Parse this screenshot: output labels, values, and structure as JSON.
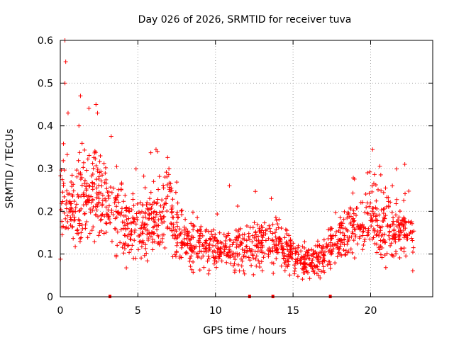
{
  "chart_data": {
    "type": "scatter",
    "title": "Day 026 of 2026, SRMTID for receiver tuva",
    "xlabel": "GPS time / hours",
    "ylabel": "SRMTID / TECUs",
    "xlim": [
      0,
      24
    ],
    "ylim": [
      0,
      0.6
    ],
    "xticks": [
      0,
      5,
      10,
      15,
      20
    ],
    "xtick_labels": [
      "0",
      "5",
      "10",
      "15",
      "20"
    ],
    "yticks": [
      0,
      0.1,
      0.2,
      0.3,
      0.4,
      0.5,
      0.6
    ],
    "ytick_labels": [
      "0",
      "0.1",
      "0.2",
      "0.3",
      "0.4",
      "0.5",
      "0.6"
    ],
    "grid": true,
    "marker": "plus",
    "series_color": "#ff0000",
    "series": [
      {
        "name": "SRMTID",
        "profile_time_hours": [
          0.0,
          0.3,
          0.6,
          1.0,
          1.5,
          2.0,
          2.5,
          3.0,
          3.5,
          4.0,
          4.5,
          5.0,
          5.5,
          6.0,
          6.5,
          7.0,
          7.3,
          7.6,
          8.0,
          9.0,
          10.0,
          11.0,
          12.0,
          13.0,
          14.0,
          14.5,
          15.0,
          15.5,
          16.0,
          16.5,
          17.0,
          17.5,
          18.0,
          18.5,
          19.0,
          19.5,
          20.0,
          20.5,
          21.0,
          21.5,
          22.0,
          22.5,
          22.8
        ],
        "profile_median_tecu": [
          0.22,
          0.24,
          0.2,
          0.18,
          0.22,
          0.26,
          0.24,
          0.22,
          0.2,
          0.18,
          0.17,
          0.16,
          0.17,
          0.18,
          0.19,
          0.22,
          0.16,
          0.14,
          0.13,
          0.12,
          0.11,
          0.11,
          0.12,
          0.12,
          0.12,
          0.11,
          0.1,
          0.08,
          0.08,
          0.08,
          0.09,
          0.12,
          0.14,
          0.15,
          0.16,
          0.17,
          0.17,
          0.17,
          0.16,
          0.15,
          0.16,
          0.15,
          0.13
        ],
        "notable_peaks": [
          {
            "x": 0.3,
            "y": 0.6
          },
          {
            "x": 0.35,
            "y": 0.55
          },
          {
            "x": 0.3,
            "y": 0.5
          },
          {
            "x": 1.3,
            "y": 0.47
          },
          {
            "x": 2.3,
            "y": 0.45
          },
          {
            "x": 2.4,
            "y": 0.43
          },
          {
            "x": 0.5,
            "y": 0.43
          },
          {
            "x": 1.2,
            "y": 0.4
          },
          {
            "x": 7.0,
            "y": 0.3
          },
          {
            "x": 10.9,
            "y": 0.26
          },
          {
            "x": 13.6,
            "y": 0.23
          },
          {
            "x": 19.8,
            "y": 0.29
          },
          {
            "x": 22.2,
            "y": 0.31
          }
        ],
        "zero_values_at_hours": [
          3.2,
          12.2,
          13.7,
          17.4
        ],
        "x_extent_hours": [
          0,
          22.8
        ]
      }
    ]
  }
}
